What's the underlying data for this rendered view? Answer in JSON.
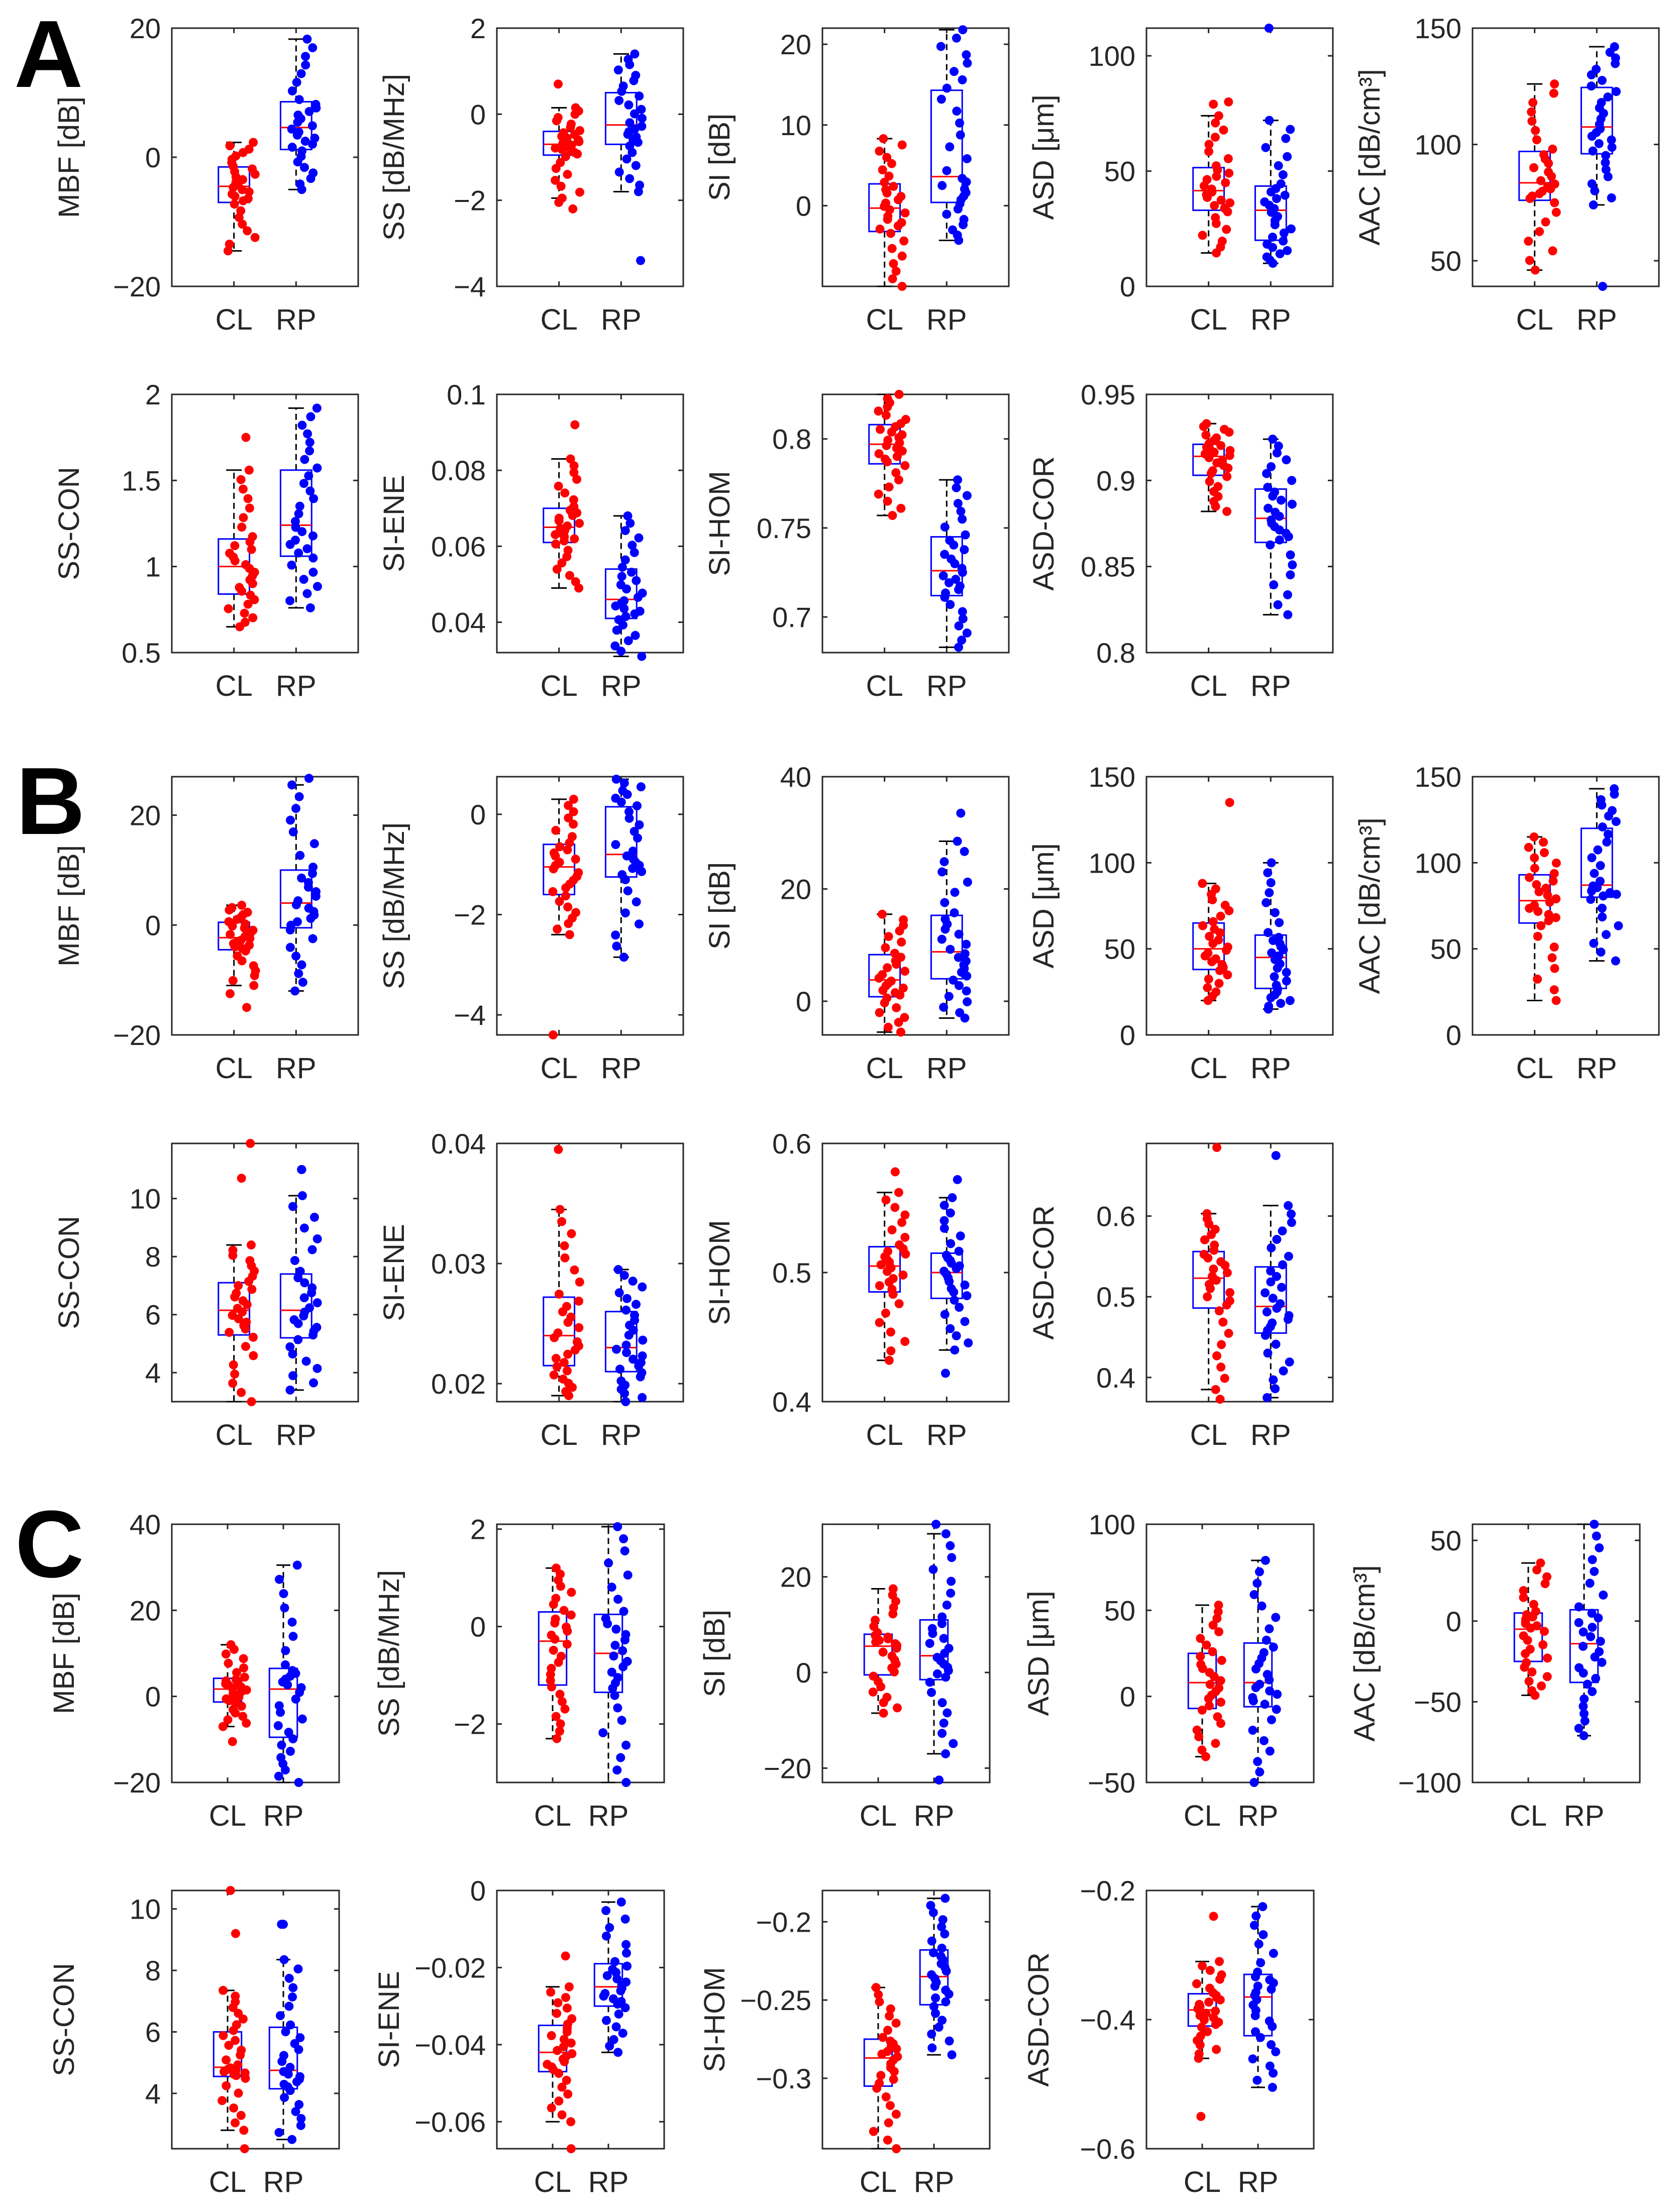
{
  "panel_letters": [
    "A",
    "B",
    "C"
  ],
  "colors": {
    "CL": "#ff0000",
    "RP": "#0000ff",
    "box": "#0000ff",
    "median": "#ff0000",
    "whisker": "#000000"
  },
  "chart_data": [
    {
      "type": "box",
      "panel": "A",
      "ylabel": "MBF [dB]",
      "ylim": [
        -20,
        20
      ],
      "yticks": [
        -20,
        0,
        20
      ],
      "categories": [
        "CL",
        "RP"
      ],
      "series": [
        {
          "name": "CL",
          "whisker_low": -14.5,
          "q1": -7,
          "median": -4.5,
          "q3": -1.5,
          "whisker_high": 2.3,
          "outliers": []
        },
        {
          "name": "RP",
          "whisker_low": -5,
          "q1": 1.2,
          "median": 4.6,
          "q3": 8.6,
          "whisker_high": 18.3,
          "outliers": []
        }
      ]
    },
    {
      "type": "box",
      "panel": "A",
      "ylabel": "SS [dB/MHz]",
      "ylim": [
        -4,
        2
      ],
      "yticks": [
        -4,
        -2,
        0,
        2
      ],
      "categories": [
        "CL",
        "RP"
      ],
      "series": [
        {
          "name": "CL",
          "whisker_low": -1.95,
          "q1": -0.95,
          "median": -0.7,
          "q3": -0.4,
          "whisker_high": 0.15,
          "outliers": [
            0.7,
            -2.05,
            -2.2
          ]
        },
        {
          "name": "RP",
          "whisker_low": -1.8,
          "q1": -0.7,
          "median": -0.25,
          "q3": 0.5,
          "whisker_high": 1.4,
          "outliers": [
            -3.4
          ]
        }
      ]
    },
    {
      "type": "box",
      "panel": "A",
      "ylabel": "SI [dB]",
      "ylim": [
        -10,
        22
      ],
      "yticks": [
        0,
        10,
        20
      ],
      "categories": [
        "CL",
        "RP"
      ],
      "series": [
        {
          "name": "CL",
          "whisker_low": -10,
          "q1": -3.2,
          "median": -0.3,
          "q3": 2.7,
          "whisker_high": 8.3,
          "outliers": []
        },
        {
          "name": "RP",
          "whisker_low": -4.3,
          "q1": 0.4,
          "median": 3.6,
          "q3": 14.3,
          "whisker_high": 21.8,
          "outliers": []
        }
      ]
    },
    {
      "type": "box",
      "panel": "A",
      "ylabel": "ASD [μm]",
      "ylim": [
        0,
        112
      ],
      "yticks": [
        0,
        50,
        100
      ],
      "categories": [
        "CL",
        "RP"
      ],
      "series": [
        {
          "name": "CL",
          "whisker_low": 14.5,
          "q1": 33,
          "median": 41.5,
          "q3": 51.5,
          "whisker_high": 74,
          "outliers": [
            79,
            80
          ]
        },
        {
          "name": "RP",
          "whisker_low": 10,
          "q1": 20,
          "median": 33,
          "q3": 43.5,
          "whisker_high": 72,
          "outliers": [
            112
          ]
        }
      ]
    },
    {
      "type": "box",
      "panel": "A",
      "ylabel": "AAC [dB/cm³]",
      "ylim": [
        39,
        150
      ],
      "yticks": [
        50,
        100,
        150
      ],
      "categories": [
        "CL",
        "RP"
      ],
      "series": [
        {
          "name": "CL",
          "whisker_low": 46,
          "q1": 76,
          "median": 83.5,
          "q3": 97,
          "whisker_high": 126,
          "outliers": []
        },
        {
          "name": "RP",
          "whisker_low": 74,
          "q1": 96,
          "median": 107.5,
          "q3": 124.5,
          "whisker_high": 142,
          "outliers": [
            39
          ]
        }
      ]
    },
    {
      "type": "box",
      "panel": "A",
      "ylabel": "SS-CON",
      "ylim": [
        0.5,
        2
      ],
      "yticks": [
        0.5,
        1,
        1.5,
        2
      ],
      "categories": [
        "CL",
        "RP"
      ],
      "series": [
        {
          "name": "CL",
          "whisker_low": 0.65,
          "q1": 0.84,
          "median": 1.0,
          "q3": 1.16,
          "whisker_high": 1.56,
          "outliers": [
            1.75
          ]
        },
        {
          "name": "RP",
          "whisker_low": 0.76,
          "q1": 1.06,
          "median": 1.24,
          "q3": 1.56,
          "whisker_high": 1.92,
          "outliers": []
        }
      ]
    },
    {
      "type": "box",
      "panel": "A",
      "ylabel": "SI-ENE",
      "ylim": [
        0.032,
        0.1
      ],
      "yticks": [
        0.04,
        0.06,
        0.08,
        0.1
      ],
      "categories": [
        "CL",
        "RP"
      ],
      "series": [
        {
          "name": "CL",
          "whisker_low": 0.049,
          "q1": 0.061,
          "median": 0.065,
          "q3": 0.07,
          "whisker_high": 0.083,
          "outliers": [
            0.092
          ]
        },
        {
          "name": "RP",
          "whisker_low": 0.031,
          "q1": 0.041,
          "median": 0.046,
          "q3": 0.054,
          "whisker_high": 0.068,
          "outliers": []
        }
      ]
    },
    {
      "type": "box",
      "panel": "A",
      "ylabel": "SI-HOM",
      "ylim": [
        0.68,
        0.825
      ],
      "yticks": [
        0.7,
        0.75,
        0.8
      ],
      "categories": [
        "CL",
        "RP"
      ],
      "series": [
        {
          "name": "CL",
          "whisker_low": 0.757,
          "q1": 0.786,
          "median": 0.797,
          "q3": 0.808,
          "whisker_high": 0.825,
          "outliers": []
        },
        {
          "name": "RP",
          "whisker_low": 0.683,
          "q1": 0.712,
          "median": 0.726,
          "q3": 0.745,
          "whisker_high": 0.777,
          "outliers": []
        }
      ]
    },
    {
      "type": "box",
      "panel": "A",
      "ylabel": "ASD-COR",
      "ylim": [
        0.8,
        0.95
      ],
      "yticks": [
        0.8,
        0.85,
        0.9,
        0.95
      ],
      "categories": [
        "CL",
        "RP"
      ],
      "series": [
        {
          "name": "CL",
          "whisker_low": 0.882,
          "q1": 0.903,
          "median": 0.914,
          "q3": 0.921,
          "whisker_high": 0.933,
          "outliers": []
        },
        {
          "name": "RP",
          "whisker_low": 0.822,
          "q1": 0.864,
          "median": 0.878,
          "q3": 0.895,
          "whisker_high": 0.924,
          "outliers": []
        }
      ]
    },
    {
      "type": "box",
      "panel": "B",
      "ylabel": "MBF [dB]",
      "ylim": [
        -20,
        27
      ],
      "yticks": [
        -20,
        0,
        20
      ],
      "categories": [
        "CL",
        "RP"
      ],
      "series": [
        {
          "name": "CL",
          "whisker_low": -11,
          "q1": -4.5,
          "median": -2.3,
          "q3": 0.5,
          "whisker_high": 3.6,
          "outliers": [
            -12.5,
            -15
          ]
        },
        {
          "name": "RP",
          "whisker_low": -12,
          "q1": -0.5,
          "median": 4,
          "q3": 10,
          "whisker_high": 25.5,
          "outliers": [
            26.7
          ]
        }
      ]
    },
    {
      "type": "box",
      "panel": "B",
      "ylabel": "SS [dB/MHz]",
      "ylim": [
        -4.4,
        0.75
      ],
      "yticks": [
        -4,
        -2,
        0
      ],
      "categories": [
        "CL",
        "RP"
      ],
      "series": [
        {
          "name": "CL",
          "whisker_low": -2.4,
          "q1": -1.6,
          "median": -1.05,
          "q3": -0.6,
          "whisker_high": 0.3,
          "outliers": [
            -4.4
          ]
        },
        {
          "name": "RP",
          "whisker_low": -2.85,
          "q1": -1.25,
          "median": -0.8,
          "q3": 0.15,
          "whisker_high": 0.7,
          "outliers": []
        }
      ]
    },
    {
      "type": "box",
      "panel": "B",
      "ylabel": "SI [dB]",
      "ylim": [
        -6,
        40
      ],
      "yticks": [
        0,
        20,
        40
      ],
      "categories": [
        "CL",
        "RP"
      ],
      "series": [
        {
          "name": "CL",
          "whisker_low": -5.5,
          "q1": 0.8,
          "median": 3.8,
          "q3": 8.3,
          "whisker_high": 15.5,
          "outliers": []
        },
        {
          "name": "RP",
          "whisker_low": -3,
          "q1": 4,
          "median": 8.8,
          "q3": 15.3,
          "whisker_high": 28.5,
          "outliers": [
            33.5
          ]
        }
      ]
    },
    {
      "type": "box",
      "panel": "B",
      "ylabel": "ASD [μm]",
      "ylim": [
        0,
        150
      ],
      "yticks": [
        0,
        50,
        100,
        150
      ],
      "categories": [
        "CL",
        "RP"
      ],
      "series": [
        {
          "name": "CL",
          "whisker_low": 20,
          "q1": 38,
          "median": 50,
          "q3": 65,
          "whisker_high": 88,
          "outliers": [
            135
          ]
        },
        {
          "name": "RP",
          "whisker_low": 15,
          "q1": 27,
          "median": 45,
          "q3": 58,
          "whisker_high": 100,
          "outliers": []
        }
      ]
    },
    {
      "type": "box",
      "panel": "B",
      "ylabel": "AAC [dB/cm³]",
      "ylim": [
        0,
        150
      ],
      "yticks": [
        0,
        50,
        100,
        150
      ],
      "categories": [
        "CL",
        "RP"
      ],
      "series": [
        {
          "name": "CL",
          "whisker_low": 20,
          "q1": 65,
          "median": 78,
          "q3": 93,
          "whisker_high": 115,
          "outliers": []
        },
        {
          "name": "RP",
          "whisker_low": 43,
          "q1": 80,
          "median": 87,
          "q3": 120,
          "whisker_high": 143,
          "outliers": []
        }
      ]
    },
    {
      "type": "box",
      "panel": "B",
      "ylabel": "SS-CON",
      "ylim": [
        3,
        11.9
      ],
      "yticks": [
        4,
        6,
        8,
        10
      ],
      "categories": [
        "CL",
        "RP"
      ],
      "series": [
        {
          "name": "CL",
          "whisker_low": 3.0,
          "q1": 5.3,
          "median": 6.15,
          "q3": 7.1,
          "whisker_high": 8.4,
          "outliers": [
            10.7,
            11.9
          ]
        },
        {
          "name": "RP",
          "whisker_low": 3.4,
          "q1": 5.2,
          "median": 6.15,
          "q3": 7.4,
          "whisker_high": 10.1,
          "outliers": [
            11,
            11
          ]
        }
      ]
    },
    {
      "type": "box",
      "panel": "B",
      "ylabel": "SI-ENE",
      "ylim": [
        0.0185,
        0.04
      ],
      "yticks": [
        0.02,
        0.03,
        0.04
      ],
      "categories": [
        "CL",
        "RP"
      ],
      "series": [
        {
          "name": "CL",
          "whisker_low": 0.019,
          "q1": 0.0215,
          "median": 0.024,
          "q3": 0.0272,
          "whisker_high": 0.0345,
          "outliers": [
            0.0395
          ]
        },
        {
          "name": "RP",
          "whisker_low": 0.0185,
          "q1": 0.021,
          "median": 0.023,
          "q3": 0.026,
          "whisker_high": 0.0295,
          "outliers": []
        }
      ]
    },
    {
      "type": "box",
      "panel": "B",
      "ylabel": "SI-HOM",
      "ylim": [
        0.4,
        0.6
      ],
      "yticks": [
        0.4,
        0.5,
        0.6
      ],
      "categories": [
        "CL",
        "RP"
      ],
      "series": [
        {
          "name": "CL",
          "whisker_low": 0.432,
          "q1": 0.485,
          "median": 0.505,
          "q3": 0.52,
          "whisker_high": 0.562,
          "outliers": [
            0.578
          ]
        },
        {
          "name": "RP",
          "whisker_low": 0.44,
          "q1": 0.48,
          "median": 0.5,
          "q3": 0.515,
          "whisker_high": 0.558,
          "outliers": [
            0.572,
            0.422
          ]
        }
      ]
    },
    {
      "type": "box",
      "panel": "B",
      "ylabel": "ASD-COR",
      "ylim": [
        0.37,
        0.69
      ],
      "yticks": [
        0.4,
        0.5,
        0.6
      ],
      "categories": [
        "CL",
        "RP"
      ],
      "series": [
        {
          "name": "CL",
          "whisker_low": 0.385,
          "q1": 0.486,
          "median": 0.523,
          "q3": 0.556,
          "whisker_high": 0.603,
          "outliers": [
            0.685,
            0.373
          ]
        },
        {
          "name": "RP",
          "whisker_low": 0.375,
          "q1": 0.455,
          "median": 0.488,
          "q3": 0.537,
          "whisker_high": 0.613,
          "outliers": [
            0.675
          ]
        }
      ]
    },
    {
      "type": "box",
      "panel": "C",
      "ylabel": "MBF [dB]",
      "ylim": [
        -20,
        40
      ],
      "yticks": [
        -20,
        0,
        20,
        40
      ],
      "categories": [
        "CL",
        "RP"
      ],
      "series": [
        {
          "name": "CL",
          "whisker_low": -7,
          "q1": -1.3,
          "median": 1.7,
          "q3": 4.2,
          "whisker_high": 12,
          "outliers": [
            -10.5
          ]
        },
        {
          "name": "RP",
          "whisker_low": -20,
          "q1": -9.5,
          "median": 1.7,
          "q3": 6.5,
          "whisker_high": 30.5,
          "outliers": []
        }
      ]
    },
    {
      "type": "box",
      "panel": "C",
      "ylabel": "SS [dB/MHz]",
      "ylim": [
        -3.2,
        2.1
      ],
      "yticks": [
        -2,
        0,
        2
      ],
      "categories": [
        "CL",
        "RP"
      ],
      "series": [
        {
          "name": "CL",
          "whisker_low": -2.3,
          "q1": -1.2,
          "median": -0.3,
          "q3": 0.3,
          "whisker_high": 1.2,
          "outliers": []
        },
        {
          "name": "RP",
          "whisker_low": -3.2,
          "q1": -1.35,
          "median": -0.55,
          "q3": 0.25,
          "whisker_high": 2.05,
          "outliers": []
        }
      ]
    },
    {
      "type": "box",
      "panel": "C",
      "ylabel": "SI [dB]",
      "ylim": [
        -23,
        31
      ],
      "yticks": [
        -20,
        0,
        20
      ],
      "categories": [
        "CL",
        "RP"
      ],
      "series": [
        {
          "name": "CL",
          "whisker_low": -8.5,
          "q1": -0.5,
          "median": 5.5,
          "q3": 8,
          "whisker_high": 17.5,
          "outliers": []
        },
        {
          "name": "RP",
          "whisker_low": -17,
          "q1": -1.5,
          "median": 3.5,
          "q3": 11,
          "whisker_high": 29,
          "outliers": [
            31,
            -22.5
          ]
        }
      ]
    },
    {
      "type": "box",
      "panel": "C",
      "ylabel": "ASD [μm]",
      "ylim": [
        -50,
        100
      ],
      "yticks": [
        -50,
        0,
        50,
        100
      ],
      "categories": [
        "CL",
        "RP"
      ],
      "series": [
        {
          "name": "CL",
          "whisker_low": -35,
          "q1": -7,
          "median": 8,
          "q3": 25,
          "whisker_high": 53,
          "outliers": []
        },
        {
          "name": "RP",
          "whisker_low": -50,
          "q1": -6,
          "median": 8,
          "q3": 31,
          "whisker_high": 79,
          "outliers": []
        }
      ]
    },
    {
      "type": "box",
      "panel": "C",
      "ylabel": "AAC [dB/cm³]",
      "ylim": [
        -100,
        60
      ],
      "yticks": [
        -100,
        -50,
        0,
        50
      ],
      "categories": [
        "CL",
        "RP"
      ],
      "series": [
        {
          "name": "CL",
          "whisker_low": -46,
          "q1": -25,
          "median": -5,
          "q3": 5,
          "whisker_high": 36,
          "outliers": []
        },
        {
          "name": "RP",
          "whisker_low": -71,
          "q1": -38,
          "median": -14,
          "q3": 7,
          "whisker_high": 60,
          "outliers": []
        }
      ]
    },
    {
      "type": "box",
      "panel": "C",
      "ylabel": "SS-CON",
      "ylim": [
        2.2,
        10.6
      ],
      "yticks": [
        4,
        6,
        8,
        10
      ],
      "categories": [
        "CL",
        "RP"
      ],
      "series": [
        {
          "name": "CL",
          "whisker_low": 2.8,
          "q1": 4.55,
          "median": 4.85,
          "q3": 6.0,
          "whisker_high": 7.35,
          "outliers": [
            9.2,
            10.6,
            2.2
          ]
        },
        {
          "name": "RP",
          "whisker_low": 2.5,
          "q1": 4.15,
          "median": 4.75,
          "q3": 6.15,
          "whisker_high": 8.35,
          "outliers": [
            9.5,
            9.5
          ]
        }
      ]
    },
    {
      "type": "box",
      "panel": "C",
      "ylabel": "SI-ENE",
      "ylim": [
        -0.067,
        0
      ],
      "yticks": [
        -0.06,
        -0.04,
        -0.02,
        0
      ],
      "categories": [
        "CL",
        "RP"
      ],
      "series": [
        {
          "name": "CL",
          "whisker_low": -0.06,
          "q1": -0.047,
          "median": -0.042,
          "q3": -0.035,
          "whisker_high": -0.025,
          "outliers": [
            -0.017,
            -0.067
          ]
        },
        {
          "name": "RP",
          "whisker_low": -0.042,
          "q1": -0.03,
          "median": -0.025,
          "q3": -0.019,
          "whisker_high": -0.003,
          "outliers": []
        }
      ]
    },
    {
      "type": "box",
      "panel": "C",
      "ylabel": "SI-HOM",
      "ylim": [
        -0.345,
        -0.18
      ],
      "yticks": [
        -0.3,
        -0.25,
        -0.2
      ],
      "categories": [
        "CL",
        "RP"
      ],
      "series": [
        {
          "name": "CL",
          "whisker_low": -0.345,
          "q1": -0.305,
          "median": -0.287,
          "q3": -0.275,
          "whisker_high": -0.242,
          "outliers": []
        },
        {
          "name": "RP",
          "whisker_low": -0.285,
          "q1": -0.253,
          "median": -0.235,
          "q3": -0.218,
          "whisker_high": -0.185,
          "outliers": []
        }
      ]
    },
    {
      "type": "box",
      "panel": "C",
      "ylabel": "ASD-COR",
      "ylim": [
        -0.6,
        -0.2
      ],
      "yticks": [
        -0.6,
        -0.4,
        -0.2
      ],
      "categories": [
        "CL",
        "RP"
      ],
      "series": [
        {
          "name": "CL",
          "whisker_low": -0.46,
          "q1": -0.41,
          "median": -0.385,
          "q3": -0.36,
          "whisker_high": -0.31,
          "outliers": [
            -0.55,
            -0.24
          ]
        },
        {
          "name": "RP",
          "whisker_low": -0.505,
          "q1": -0.425,
          "median": -0.365,
          "q3": -0.33,
          "whisker_high": -0.225,
          "outliers": []
        }
      ]
    }
  ]
}
